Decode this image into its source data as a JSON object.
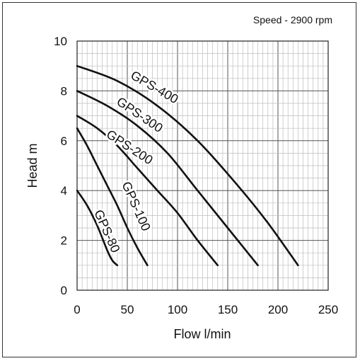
{
  "chart_data": {
    "type": "line",
    "subtitle": "Speed - 2900 rpm",
    "xlabel": "Flow l/min",
    "ylabel": "Head m",
    "xlim": [
      0,
      250
    ],
    "ylim": [
      0,
      10
    ],
    "x_ticks": [
      "0",
      "50",
      "100",
      "150",
      "200",
      "250"
    ],
    "y_ticks": [
      "0",
      "2",
      "4",
      "6",
      "8",
      "10"
    ],
    "grid": true,
    "line_color": "#111111",
    "grid_color": "#bdbdbd",
    "series": [
      {
        "name": "GPS-80",
        "x": [
          0,
          10,
          20,
          30,
          35,
          40
        ],
        "y": [
          4.0,
          3.4,
          2.6,
          1.6,
          1.2,
          1.0
        ]
      },
      {
        "name": "GPS-100",
        "x": [
          0,
          10,
          20,
          30,
          40,
          50,
          60,
          70
        ],
        "y": [
          6.5,
          5.8,
          5.0,
          4.2,
          3.4,
          2.5,
          1.7,
          1.0
        ]
      },
      {
        "name": "GPS-200",
        "x": [
          0,
          20,
          40,
          60,
          80,
          100,
          120,
          140
        ],
        "y": [
          7.0,
          6.5,
          5.8,
          4.9,
          4.0,
          3.1,
          2.0,
          1.0
        ]
      },
      {
        "name": "GPS-300",
        "x": [
          0,
          30,
          60,
          90,
          120,
          150,
          180
        ],
        "y": [
          8.0,
          7.4,
          6.6,
          5.5,
          4.0,
          2.5,
          1.0
        ]
      },
      {
        "name": "GPS-400",
        "x": [
          0,
          40,
          80,
          120,
          160,
          190,
          220
        ],
        "y": [
          9.0,
          8.4,
          7.4,
          6.0,
          4.2,
          2.7,
          1.0
        ]
      }
    ]
  }
}
